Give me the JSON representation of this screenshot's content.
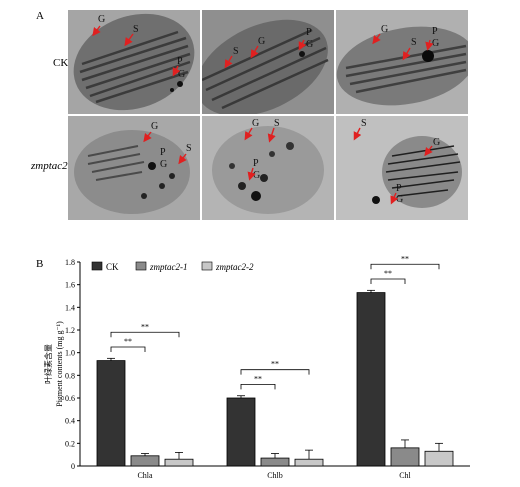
{
  "panel_a": {
    "letter": "A",
    "row_labels": [
      "CK",
      "zmptac2"
    ],
    "tiles": [
      {
        "labels": [
          "G",
          "S",
          "P",
          "G"
        ]
      },
      {
        "labels": [
          "S",
          "G",
          "P",
          "G"
        ]
      },
      {
        "labels": [
          "G",
          "S",
          "P",
          "G"
        ]
      },
      {
        "labels": [
          "G",
          "P",
          "G",
          "S"
        ]
      },
      {
        "labels": [
          "G",
          "S",
          "P",
          "G"
        ]
      },
      {
        "labels": [
          "S",
          "G",
          "P",
          "G"
        ]
      }
    ]
  },
  "panel_b": {
    "letter": "B"
  },
  "chart_data": {
    "type": "bar",
    "categories": [
      "Chla",
      "Chlb",
      "Chl"
    ],
    "series": [
      {
        "name": "CK",
        "values": [
          0.93,
          0.6,
          1.53
        ],
        "errors": [
          0.02,
          0.02,
          0.02
        ],
        "color": "#333333"
      },
      {
        "name": "zmptac2-1",
        "values": [
          0.09,
          0.07,
          0.16
        ],
        "errors": [
          0.02,
          0.04,
          0.07
        ],
        "color": "#8a8a8a"
      },
      {
        "name": "zmptac2-2",
        "values": [
          0.06,
          0.06,
          0.13
        ],
        "errors": [
          0.06,
          0.08,
          0.07
        ],
        "color": "#c8c8c8"
      }
    ],
    "ylabel_cn": "叶绿素含量",
    "ylabel_en": "Pigment contents (mg g⁻¹)",
    "ylim": [
      0,
      1.8
    ],
    "yticks": [
      "0",
      "0.2",
      "0.4",
      "0.6",
      "0.8",
      "1.0",
      "1.2",
      "1.4",
      "1.6",
      "1.8"
    ],
    "significance": "**",
    "colors": {
      "ck": "#333333",
      "m1": "#8a8a8a",
      "m2": "#c8c8c8",
      "arrow": "#e02020"
    }
  }
}
